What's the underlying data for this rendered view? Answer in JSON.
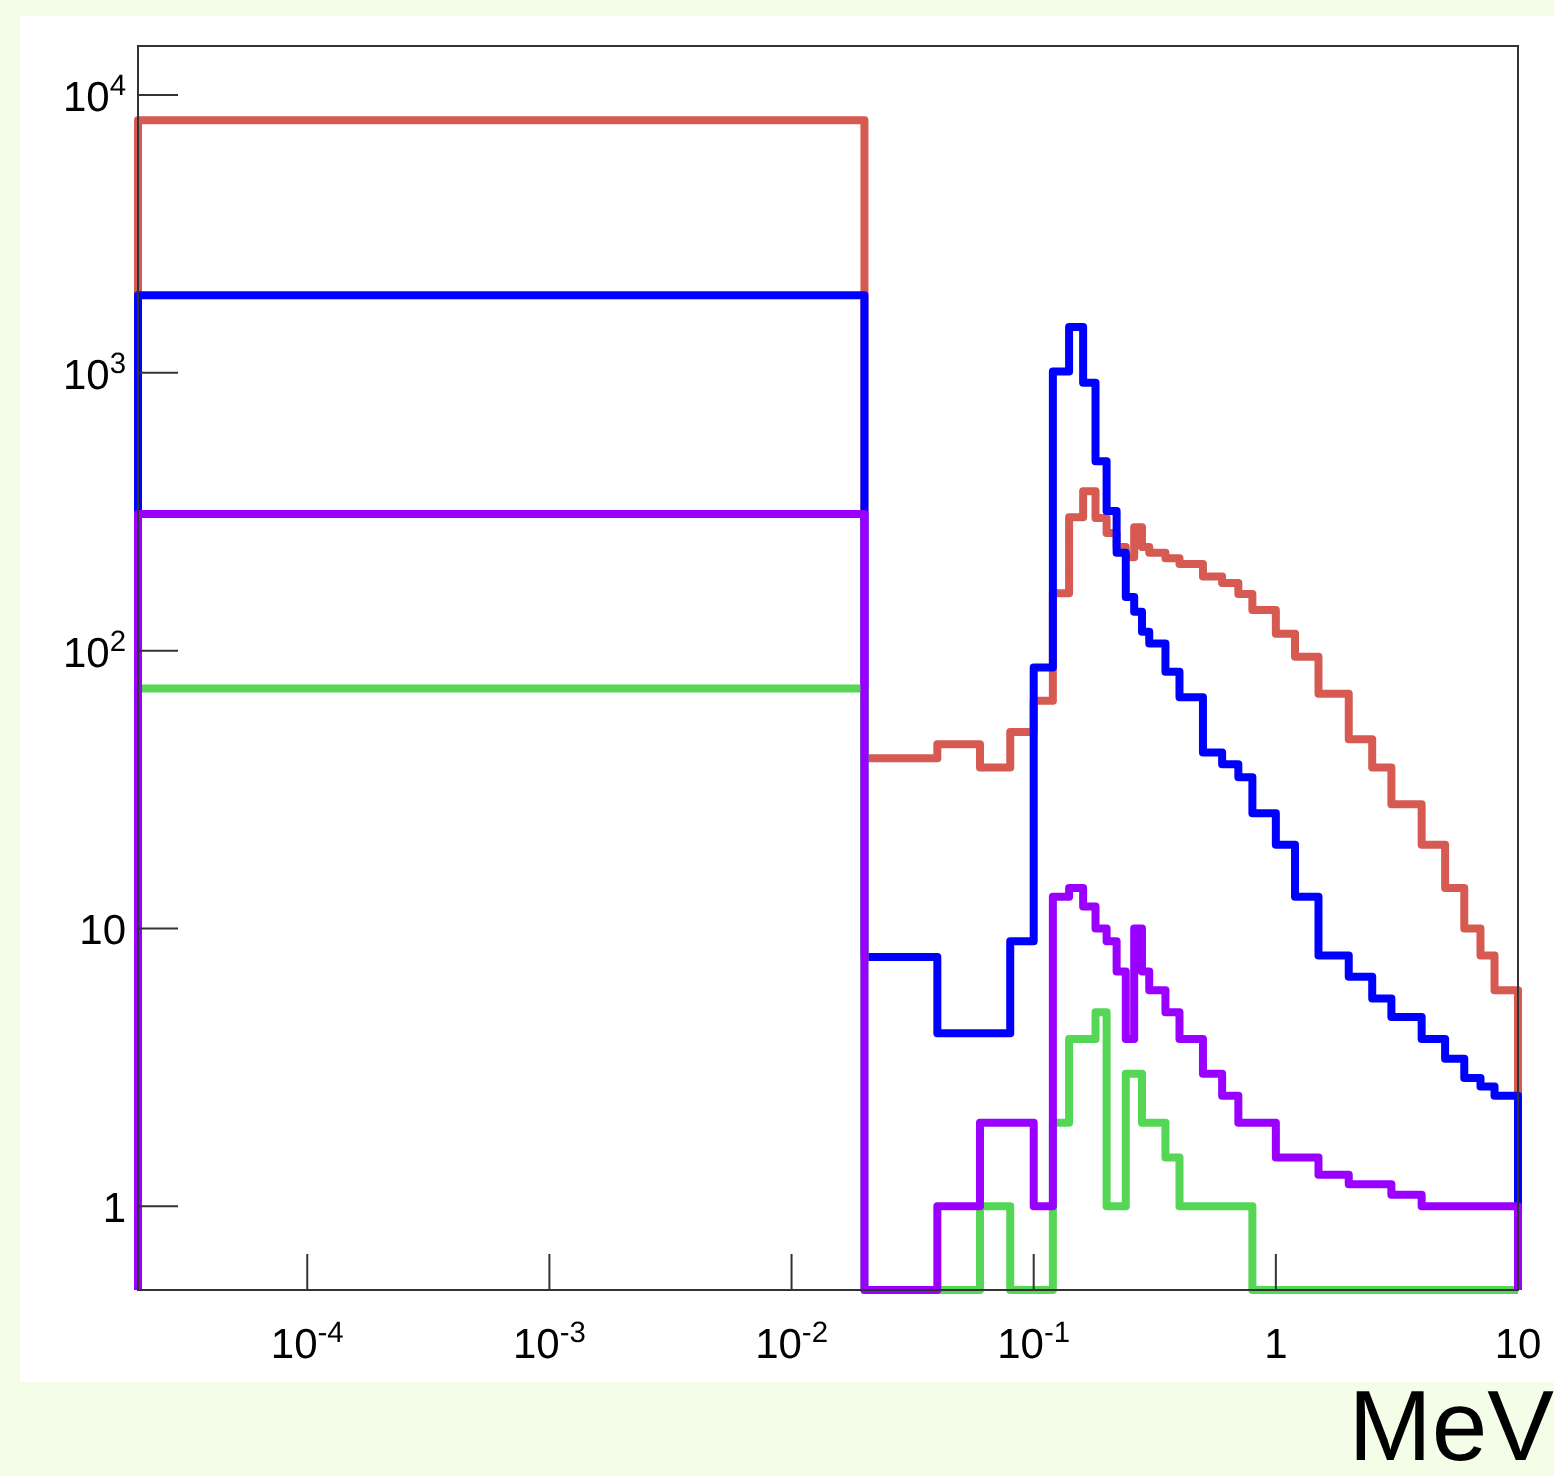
{
  "chart_data": {
    "type": "histogram",
    "xlabel": "MeV",
    "log": "xy",
    "grid": false,
    "bins": [
      2e-05,
      0.02,
      0.04,
      0.06,
      0.08,
      0.1,
      0.12,
      0.14,
      0.16,
      0.18,
      0.2,
      0.22,
      0.24,
      0.26,
      0.28,
      0.3,
      0.35,
      0.4,
      0.5,
      0.6,
      0.7,
      0.8,
      1,
      1.2,
      1.5,
      2,
      2.5,
      3,
      4,
      5,
      6,
      7,
      8,
      10
    ],
    "series": [
      {
        "color": "#d65a52",
        "values": [
          8100,
          41,
          46,
          38,
          51,
          66,
          161,
          302,
          375,
          300,
          265,
          236,
          217,
          278,
          236,
          225,
          215,
          205,
          185,
          175,
          160,
          140,
          115,
          95,
          70,
          48,
          38,
          28,
          20,
          14,
          10,
          8,
          6
        ]
      },
      {
        "color": "#0000ff",
        "values": [
          1900,
          7.9,
          4.2,
          4.2,
          9,
          87,
          1010,
          1460,
          920,
          480,
          318,
          225,
          156,
          138,
          117,
          106,
          84,
          68,
          43,
          39,
          35,
          26,
          20,
          13,
          8,
          6.7,
          5.6,
          4.8,
          4,
          3.4,
          2.9,
          2.7,
          2.5
        ]
      },
      {
        "color": "#55d655",
        "values": [
          73,
          null,
          null,
          1,
          null,
          null,
          2,
          4,
          4,
          5,
          1,
          1,
          3,
          3,
          2,
          2,
          1.5,
          1,
          1,
          1,
          1,
          null,
          null,
          null,
          null,
          null,
          null,
          null,
          null,
          null,
          null,
          null,
          null
        ]
      },
      {
        "color": "#9900ff",
        "values": [
          310,
          null,
          1,
          2,
          2,
          1,
          13,
          14,
          12,
          10,
          9,
          7,
          4,
          10,
          7,
          6,
          5,
          4,
          3,
          2.5,
          2,
          2,
          1.5,
          1.5,
          1.3,
          1.2,
          1.2,
          1.1,
          1,
          1,
          1,
          1,
          1
        ]
      }
    ],
    "xlim": [
      2e-05,
      10
    ],
    "xticks": [
      {
        "value": 0.0001,
        "label": "10$^{-4}$"
      },
      {
        "value": 0.001,
        "label": "10$^{-3}$"
      },
      {
        "value": 0.01,
        "label": "10$^{-2}$"
      },
      {
        "value": 0.1,
        "label": "10$^{-1}$"
      },
      1,
      10
    ],
    "ylim": [
      0.5,
      15000
    ],
    "yticks": [
      1,
      10,
      {
        "value": 100,
        "label": "10$^{2}$"
      },
      {
        "value": 1000,
        "label": "10$^{3}$"
      },
      {
        "value": 10000,
        "label": "10$^{4}$"
      }
    ]
  }
}
